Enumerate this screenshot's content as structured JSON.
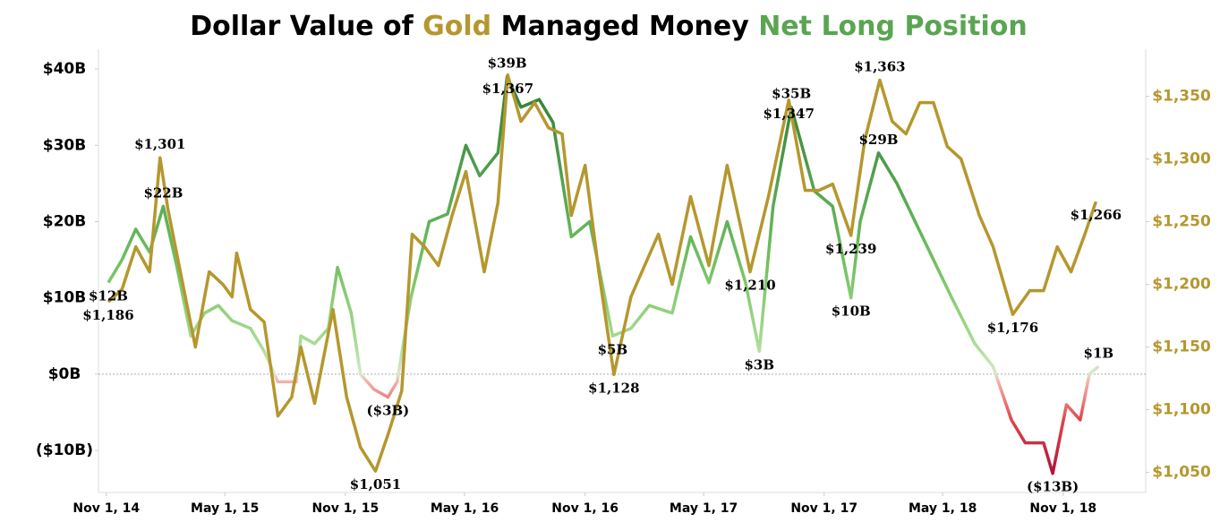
{
  "chart_data": {
    "type": "line",
    "title_parts": [
      {
        "text": "Dollar Value of ",
        "color": "#000000"
      },
      {
        "text": "Gold",
        "color": "#b5972e"
      },
      {
        "text": " Managed Money ",
        "color": "#000000"
      },
      {
        "text": "Net Long Position",
        "color": "#5aa552"
      }
    ],
    "xlim": [
      "2014-10-20",
      "2019-03-07"
    ],
    "xticks": [
      {
        "value": "2014-11-01",
        "label": "Nov 1, 14"
      },
      {
        "value": "2015-05-01",
        "label": "May 1, 15"
      },
      {
        "value": "2015-11-01",
        "label": "Nov 1, 15"
      },
      {
        "value": "2016-05-01",
        "label": "May 1, 16"
      },
      {
        "value": "2016-11-01",
        "label": "Nov 1, 16"
      },
      {
        "value": "2017-05-01",
        "label": "May 1, 17"
      },
      {
        "value": "2017-11-01",
        "label": "Nov 1, 17"
      },
      {
        "value": "2018-05-01",
        "label": "May 1, 18"
      },
      {
        "value": "2018-11-01",
        "label": "Nov 1, 18"
      }
    ],
    "ylim": [
      -15.5,
      42
    ],
    "yticks": [
      {
        "value": -10,
        "label": "($10B)"
      },
      {
        "value": 0,
        "label": "$0B"
      },
      {
        "value": 10,
        "label": "$10B"
      },
      {
        "value": 20,
        "label": "$20B"
      },
      {
        "value": 30,
        "label": "$30B"
      },
      {
        "value": 40,
        "label": "$40B"
      }
    ],
    "y2lim": [
      1034,
      1384
    ],
    "y2ticks": [
      {
        "value": 1050,
        "label": "$1,050"
      },
      {
        "value": 1100,
        "label": "$1,100"
      },
      {
        "value": 1150,
        "label": "$1,150"
      },
      {
        "value": 1200,
        "label": "$1,200"
      },
      {
        "value": 1250,
        "label": "$1,250"
      },
      {
        "value": 1300,
        "label": "$1,300"
      },
      {
        "value": 1350,
        "label": "$1,350"
      }
    ],
    "zero_line": true,
    "series": [
      {
        "name": "Net Long Position",
        "axis": "y",
        "color_scale": [
          {
            "value": -13,
            "color": "#b3123a"
          },
          {
            "value": -6,
            "color": "#e0454a"
          },
          {
            "value": -1,
            "color": "#f2b2a8"
          },
          {
            "value": 0,
            "color": "#d9e6cf"
          },
          {
            "value": 4,
            "color": "#a9dc92"
          },
          {
            "value": 15,
            "color": "#6fbf5f"
          },
          {
            "value": 39,
            "color": "#2d7d36"
          }
        ],
        "x": [
          "2014-11-04",
          "2014-11-25",
          "2014-12-16",
          "2015-01-06",
          "2015-01-27",
          "2015-02-17",
          "2015-03-10",
          "2015-03-31",
          "2015-04-21",
          "2015-05-12",
          "2015-06-09",
          "2015-06-30",
          "2015-07-21",
          "2015-08-18",
          "2015-08-25",
          "2015-09-15",
          "2015-10-06",
          "2015-10-20",
          "2015-11-10",
          "2015-11-24",
          "2015-12-15",
          "2016-01-05",
          "2016-01-19",
          "2016-02-09",
          "2016-03-08",
          "2016-04-05",
          "2016-05-03",
          "2016-05-24",
          "2016-06-21",
          "2016-07-05",
          "2016-07-26",
          "2016-08-23",
          "2016-09-13",
          "2016-10-11",
          "2016-11-08",
          "2016-12-13",
          "2017-01-10",
          "2017-02-07",
          "2017-03-14",
          "2017-04-11",
          "2017-05-09",
          "2017-06-06",
          "2017-07-04",
          "2017-07-25",
          "2017-08-15",
          "2017-09-12",
          "2017-10-17",
          "2017-11-14",
          "2017-12-12",
          "2017-12-26",
          "2018-01-23",
          "2018-02-20",
          "2018-03-20",
          "2018-04-17",
          "2018-05-15",
          "2018-06-19",
          "2018-07-17",
          "2018-08-14",
          "2018-09-04",
          "2018-10-02",
          "2018-10-16",
          "2018-11-06",
          "2018-11-27",
          "2018-12-11",
          "2018-12-25"
        ],
        "values": [
          12,
          15,
          19,
          16,
          22,
          14,
          5,
          8,
          9,
          7,
          6,
          3,
          -1,
          -1,
          5,
          4,
          6,
          14,
          8,
          0,
          -2,
          -3,
          -1,
          10,
          20,
          21,
          30,
          26,
          29,
          39,
          35,
          36,
          33,
          18,
          20,
          5,
          6,
          9,
          8,
          18,
          12,
          20,
          12,
          3,
          22,
          35,
          24,
          22,
          10,
          20,
          29,
          25,
          20,
          15,
          10,
          4,
          1,
          -6,
          -9,
          -9,
          -13,
          -4,
          -6,
          0,
          1
        ]
      },
      {
        "name": "Gold",
        "axis": "y2",
        "color": "#b5972e",
        "x": [
          "2014-11-04",
          "2014-11-25",
          "2014-12-16",
          "2015-01-06",
          "2015-01-22",
          "2015-02-03",
          "2015-02-24",
          "2015-03-17",
          "2015-04-07",
          "2015-04-28",
          "2015-05-12",
          "2015-05-19",
          "2015-06-09",
          "2015-06-30",
          "2015-07-21",
          "2015-08-11",
          "2015-08-25",
          "2015-09-15",
          "2015-10-13",
          "2015-11-03",
          "2015-11-24",
          "2015-12-17",
          "2016-01-05",
          "2016-01-26",
          "2016-02-11",
          "2016-03-01",
          "2016-03-22",
          "2016-04-12",
          "2016-05-03",
          "2016-05-31",
          "2016-06-21",
          "2016-07-06",
          "2016-07-26",
          "2016-08-16",
          "2016-09-06",
          "2016-09-27",
          "2016-10-11",
          "2016-11-01",
          "2016-11-22",
          "2016-12-15",
          "2017-01-10",
          "2017-01-31",
          "2017-02-21",
          "2017-03-14",
          "2017-04-11",
          "2017-05-09",
          "2017-06-06",
          "2017-06-27",
          "2017-07-11",
          "2017-08-08",
          "2017-09-08",
          "2017-10-03",
          "2017-10-24",
          "2017-11-14",
          "2017-12-12",
          "2018-01-02",
          "2018-01-25",
          "2018-02-13",
          "2018-03-06",
          "2018-03-27",
          "2018-04-17",
          "2018-05-08",
          "2018-05-29",
          "2018-06-26",
          "2018-07-17",
          "2018-08-16",
          "2018-09-11",
          "2018-10-02",
          "2018-10-23",
          "2018-11-13",
          "2018-12-04",
          "2018-12-21"
        ],
        "values": [
          1186,
          1196,
          1230,
          1210,
          1301,
          1260,
          1205,
          1150,
          1210,
          1200,
          1190,
          1225,
          1180,
          1170,
          1095,
          1110,
          1150,
          1105,
          1180,
          1110,
          1070,
          1051,
          1080,
          1115,
          1240,
          1230,
          1215,
          1255,
          1290,
          1210,
          1265,
          1367,
          1330,
          1345,
          1325,
          1320,
          1255,
          1295,
          1210,
          1128,
          1190,
          1215,
          1240,
          1200,
          1270,
          1215,
          1295,
          1245,
          1210,
          1270,
          1347,
          1275,
          1275,
          1280,
          1239,
          1315,
          1363,
          1330,
          1320,
          1345,
          1345,
          1310,
          1300,
          1255,
          1230,
          1176,
          1195,
          1195,
          1230,
          1210,
          1240,
          1266
        ]
      }
    ],
    "annotations": [
      {
        "label": "$1,301",
        "x": "2015-01-22",
        "value": 1301,
        "axis": "y2",
        "position": "above"
      },
      {
        "label": "$22B",
        "x": "2015-01-27",
        "value": 22,
        "axis": "y",
        "position": "above"
      },
      {
        "label": "$12B",
        "x": "2014-11-04",
        "value": 12,
        "axis": "y",
        "position": "below"
      },
      {
        "label": "$1,186",
        "x": "2014-11-04",
        "value": 1186,
        "axis": "y2",
        "position": "below"
      },
      {
        "label": "($3B)",
        "x": "2016-01-05",
        "value": -3,
        "axis": "y",
        "position": "below"
      },
      {
        "label": "$1,051",
        "x": "2015-12-17",
        "value": 1051,
        "axis": "y2",
        "position": "below"
      },
      {
        "label": "$39B",
        "x": "2016-07-05",
        "value": 39,
        "axis": "y",
        "position": "above"
      },
      {
        "label": "$1,367",
        "x": "2016-07-06",
        "value": 1367,
        "axis": "y2",
        "position": "below"
      },
      {
        "label": "$5B",
        "x": "2016-12-13",
        "value": 5,
        "axis": "y",
        "position": "below"
      },
      {
        "label": "$1,128",
        "x": "2016-12-15",
        "value": 1128,
        "axis": "y2",
        "position": "below"
      },
      {
        "label": "$3B",
        "x": "2017-07-25",
        "value": 3,
        "axis": "y",
        "position": "below"
      },
      {
        "label": "$1,210",
        "x": "2017-07-11",
        "value": 1210,
        "axis": "y2",
        "position": "below"
      },
      {
        "label": "$35B",
        "x": "2017-09-12",
        "value": 35,
        "axis": "y",
        "position": "above"
      },
      {
        "label": "$1,347",
        "x": "2017-09-08",
        "value": 1347,
        "axis": "y2",
        "position": "below"
      },
      {
        "label": "$1,239",
        "x": "2017-12-12",
        "value": 1239,
        "axis": "y2",
        "position": "below"
      },
      {
        "label": "$10B",
        "x": "2017-12-12",
        "value": 10,
        "axis": "y",
        "position": "below"
      },
      {
        "label": "$1,363",
        "x": "2018-01-25",
        "value": 1363,
        "axis": "y2",
        "position": "above"
      },
      {
        "label": "$29B",
        "x": "2018-01-23",
        "value": 29,
        "axis": "y",
        "position": "above"
      },
      {
        "label": "$1,176",
        "x": "2018-08-16",
        "value": 1176,
        "axis": "y2",
        "position": "below"
      },
      {
        "label": "($13B)",
        "x": "2018-10-16",
        "value": -13,
        "axis": "y",
        "position": "below"
      },
      {
        "label": "$1B",
        "x": "2018-12-25",
        "value": 1,
        "axis": "y",
        "position": "above"
      },
      {
        "label": "$1,266",
        "x": "2018-12-21",
        "value": 1266,
        "axis": "y2",
        "position": "below"
      }
    ]
  }
}
